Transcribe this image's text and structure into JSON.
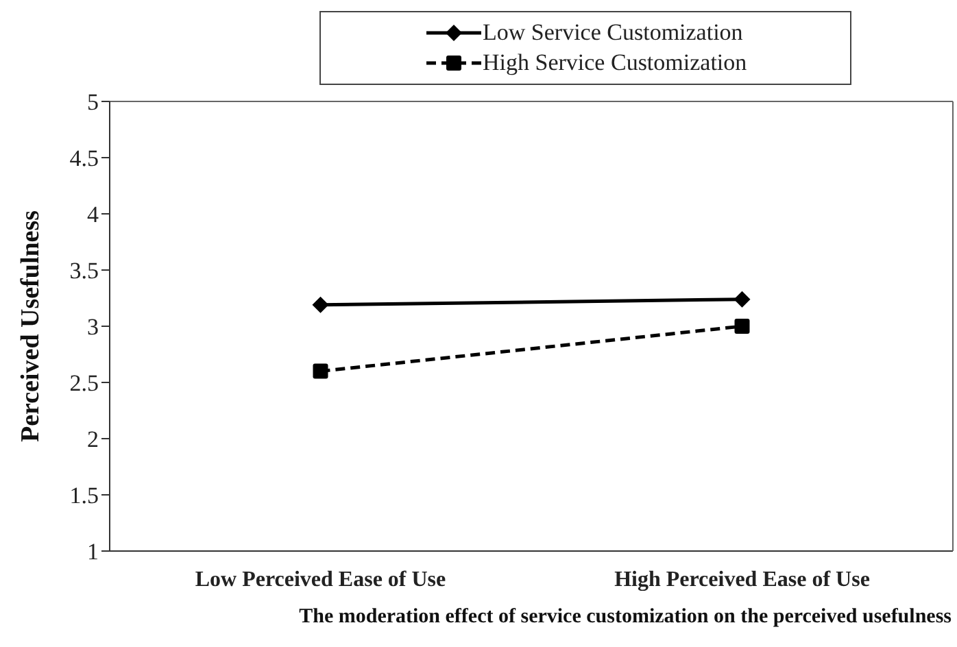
{
  "chart_data": {
    "type": "line",
    "title": "The moderation effect of service customization on the perceived usefulness",
    "ylabel": "Perceived Usefulness",
    "categories": [
      "Low Perceived Ease of Use",
      "High Perceived Ease of Use"
    ],
    "series": [
      {
        "name": "Low Service Customization",
        "color": "#000000",
        "values": [
          3.19,
          3.24
        ],
        "marker": "diamond",
        "line_style": "solid"
      },
      {
        "name": "High Service Customization",
        "color": "#000000",
        "values": [
          2.6,
          3.0
        ],
        "marker": "square",
        "line_style": "dashed"
      }
    ],
    "ylim": [
      1,
      5
    ],
    "yticks": [
      1,
      1.5,
      2,
      2.5,
      3,
      3.5,
      4,
      4.5,
      5
    ],
    "grid": false,
    "legend": "top"
  }
}
